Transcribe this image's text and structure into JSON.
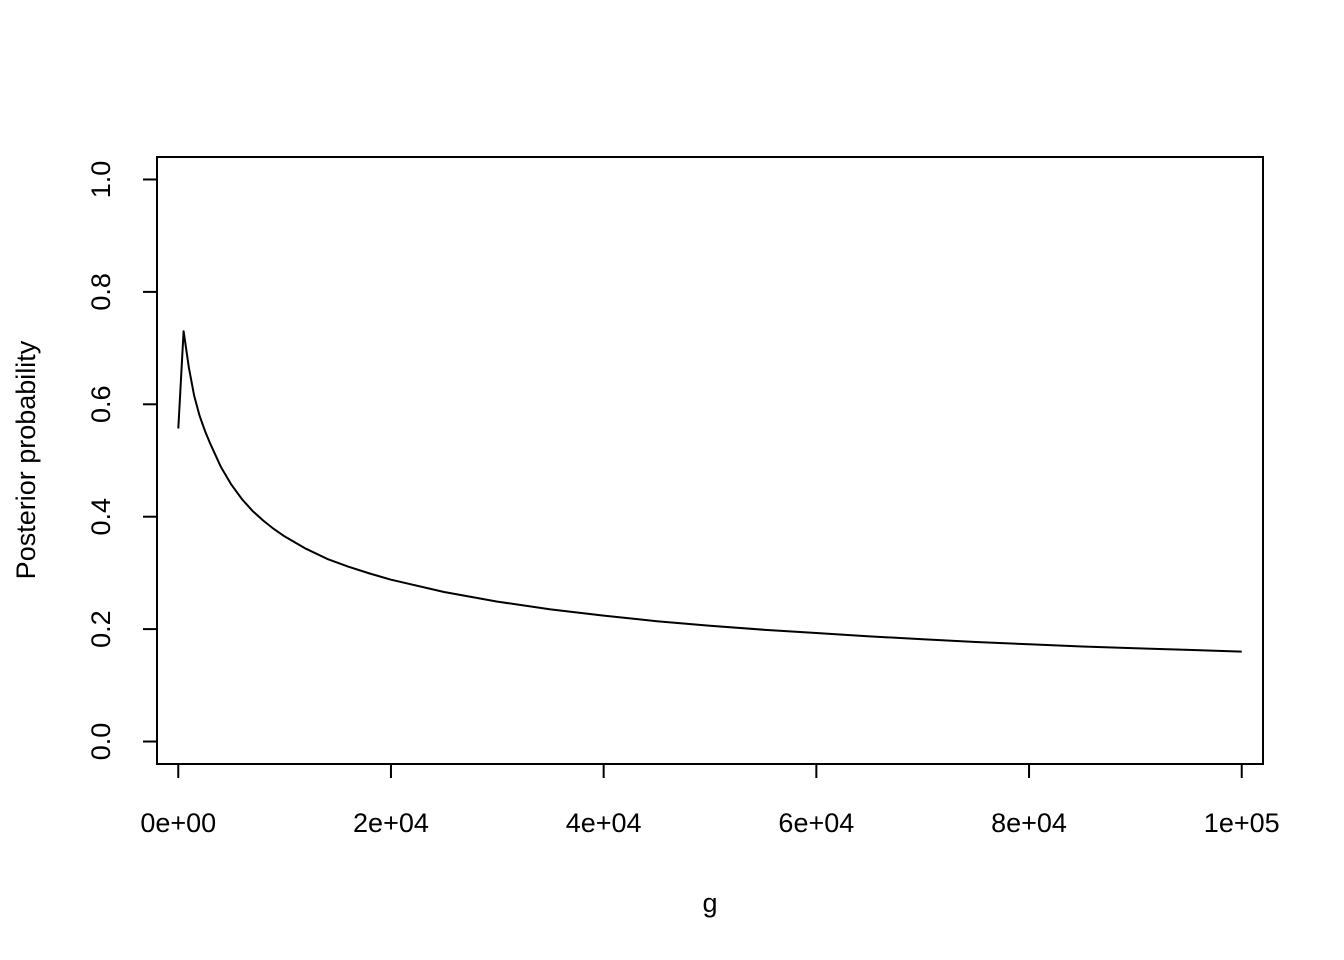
{
  "chart_data": {
    "type": "line",
    "title": "",
    "xlabel": "g",
    "ylabel": "Posterior probability",
    "xlim": [
      -2000,
      102000
    ],
    "ylim": [
      -0.04,
      1.04
    ],
    "x_ticks": [
      0,
      20000,
      40000,
      60000,
      80000,
      100000
    ],
    "x_tick_labels": [
      "0e+00",
      "2e+04",
      "4e+04",
      "6e+04",
      "8e+04",
      "1e+05"
    ],
    "y_ticks": [
      0.0,
      0.2,
      0.4,
      0.6,
      0.8,
      1.0
    ],
    "y_tick_labels": [
      "0.0",
      "0.2",
      "0.4",
      "0.6",
      "0.8",
      "1.0"
    ],
    "grid": false,
    "series": [
      {
        "color": "#000000",
        "x": [
          0,
          500,
          1000,
          1500,
          2000,
          2500,
          3000,
          4000,
          5000,
          6000,
          7000,
          8000,
          9000,
          10000,
          12000,
          14000,
          16000,
          18000,
          20000,
          25000,
          30000,
          35000,
          40000,
          45000,
          50000,
          55000,
          60000,
          65000,
          70000,
          75000,
          80000,
          85000,
          90000,
          95000,
          100000
        ],
        "y": [
          0.557,
          0.73,
          0.665,
          0.615,
          0.58,
          0.553,
          0.53,
          0.489,
          0.457,
          0.431,
          0.41,
          0.393,
          0.378,
          0.365,
          0.343,
          0.325,
          0.311,
          0.299,
          0.288,
          0.266,
          0.249,
          0.235,
          0.224,
          0.214,
          0.206,
          0.199,
          0.193,
          0.187,
          0.182,
          0.177,
          0.173,
          0.169,
          0.166,
          0.163,
          0.16
        ]
      }
    ]
  }
}
